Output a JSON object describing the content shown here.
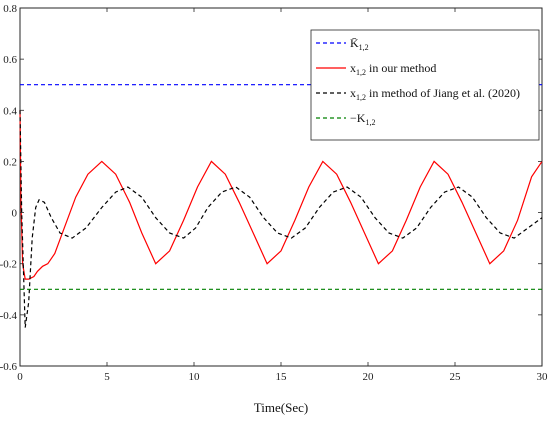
{
  "chart_data": {
    "type": "line",
    "xlabel": "Time(Sec)",
    "ylabel": "",
    "xlim": [
      0,
      30
    ],
    "ylim": [
      -0.6,
      0.8
    ],
    "xticks": [
      "0",
      "5",
      "10",
      "15",
      "20",
      "25",
      "30"
    ],
    "yticks": [
      "-0.6",
      "-0.4",
      "-0.2",
      "0",
      "0.2",
      "0.4",
      "0.6",
      "0.8"
    ],
    "grid": false,
    "legend_position": "top-right",
    "series": [
      {
        "name": "K̄1,2",
        "legend_main": "K̄",
        "legend_sub": "1,2",
        "legend_suffix": "",
        "color": "#0000ff",
        "dash": "dashed",
        "x": [
          0,
          30
        ],
        "y": [
          0.5,
          0.5
        ]
      },
      {
        "name": "x1,2 in our method",
        "legend_main": "x",
        "legend_sub": "1,2",
        "legend_suffix": " in our method",
        "color": "#ff0000",
        "dash": "solid",
        "x": [
          0,
          0.05,
          0.15,
          0.3,
          0.5,
          0.8,
          1.0,
          1.3,
          1.6,
          2.0,
          2.6,
          3.2,
          3.9,
          4.7,
          5.5,
          6.3,
          7.0,
          7.8,
          8.6,
          9.4,
          10.2,
          11.0,
          11.8,
          12.6,
          13.4,
          14.2,
          15.0,
          15.8,
          16.6,
          17.4,
          18.2,
          19.0,
          19.8,
          20.6,
          21.4,
          22.2,
          23.0,
          23.8,
          24.6,
          25.4,
          26.2,
          27.0,
          27.8,
          28.6,
          29.4,
          30.0
        ],
        "y": [
          0.4,
          0.05,
          -0.2,
          -0.26,
          -0.26,
          -0.25,
          -0.23,
          -0.21,
          -0.2,
          -0.16,
          -0.05,
          0.06,
          0.15,
          0.2,
          0.15,
          0.04,
          -0.08,
          -0.2,
          -0.15,
          -0.03,
          0.1,
          0.2,
          0.15,
          0.04,
          -0.08,
          -0.2,
          -0.15,
          -0.03,
          0.1,
          0.2,
          0.15,
          0.04,
          -0.08,
          -0.2,
          -0.15,
          -0.03,
          0.1,
          0.2,
          0.15,
          0.04,
          -0.08,
          -0.2,
          -0.15,
          -0.03,
          0.14,
          0.2
        ]
      },
      {
        "name": "x1,2 in method of Jiang et al. (2020)",
        "legend_main": "x",
        "legend_sub": "1,2",
        "legend_suffix": " in method of Jiang et al. (2020)",
        "color": "#000000",
        "dash": "dashed",
        "x": [
          0,
          0.1,
          0.3,
          0.5,
          0.7,
          0.9,
          1.1,
          1.4,
          1.8,
          2.3,
          3.0,
          3.8,
          4.7,
          5.5,
          6.2,
          7.0,
          7.8,
          8.6,
          9.4,
          10.1,
          10.8,
          11.6,
          12.4,
          13.2,
          14.0,
          14.8,
          15.6,
          16.4,
          17.2,
          18.0,
          18.8,
          19.6,
          20.4,
          21.2,
          22.0,
          22.8,
          23.6,
          24.4,
          25.2,
          26.0,
          26.8,
          27.6,
          28.4,
          29.2,
          30.0
        ],
        "y": [
          0.4,
          0.0,
          -0.45,
          -0.35,
          -0.1,
          0.02,
          0.05,
          0.04,
          -0.02,
          -0.08,
          -0.1,
          -0.06,
          0.02,
          0.08,
          0.1,
          0.06,
          -0.02,
          -0.08,
          -0.1,
          -0.06,
          0.02,
          0.08,
          0.1,
          0.06,
          -0.02,
          -0.08,
          -0.1,
          -0.06,
          0.02,
          0.08,
          0.1,
          0.06,
          -0.02,
          -0.08,
          -0.1,
          -0.06,
          0.02,
          0.08,
          0.1,
          0.06,
          -0.02,
          -0.08,
          -0.1,
          -0.06,
          -0.02
        ]
      },
      {
        "name": "−K1,2",
        "legend_main": "−K",
        "legend_sub": "1,2",
        "legend_suffix": "",
        "color": "#008000",
        "dash": "dashed",
        "x": [
          0,
          30
        ],
        "y": [
          -0.3,
          -0.3
        ]
      }
    ]
  }
}
